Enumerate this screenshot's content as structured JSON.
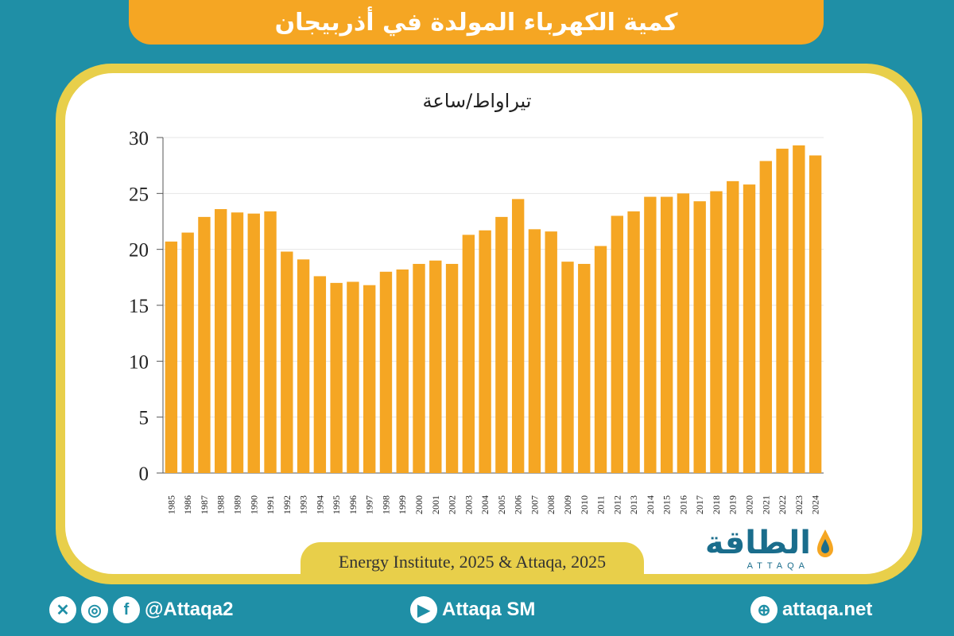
{
  "title": "كمية الكهرباء المولدة في أذربيجان",
  "chart_data": {
    "type": "bar",
    "ylabel": "تيراواط/ساعة",
    "ylim": [
      0,
      30
    ],
    "yticks": [
      0,
      5,
      10,
      15,
      20,
      25,
      30
    ],
    "grid": true,
    "categories": [
      "1985",
      "1986",
      "1987",
      "1988",
      "1989",
      "1990",
      "1991",
      "1992",
      "1993",
      "1994",
      "1995",
      "1996",
      "1997",
      "1998",
      "1999",
      "2000",
      "2001",
      "2002",
      "2003",
      "2004",
      "2005",
      "2006",
      "2007",
      "2008",
      "2009",
      "2010",
      "2011",
      "2012",
      "2013",
      "2014",
      "2015",
      "2016",
      "2017",
      "2018",
      "2019",
      "2020",
      "2021",
      "2022",
      "2023",
      "2024"
    ],
    "values": [
      20.7,
      21.5,
      22.9,
      23.6,
      23.3,
      23.2,
      23.4,
      19.8,
      19.1,
      17.6,
      17.0,
      17.1,
      16.8,
      18.0,
      18.2,
      18.7,
      19.0,
      18.7,
      21.3,
      21.7,
      22.9,
      24.5,
      21.8,
      21.6,
      18.9,
      18.7,
      20.3,
      23.0,
      23.4,
      24.7,
      24.7,
      25.0,
      24.3,
      25.2,
      26.1,
      25.8,
      27.9,
      29.0,
      29.3,
      28.4
    ],
    "bar_color": "#f5a623"
  },
  "source": "Energy Institute, 2025 & Attaqa, 2025",
  "logo": {
    "word": "الطاقة",
    "sub": "ATTAQA"
  },
  "footer": {
    "handle": "@Attaqa2",
    "youtube": "Attaqa SM",
    "website": "attaqa.net"
  },
  "colors": {
    "background": "#1f8fa6",
    "accent": "#f5a623",
    "frame": "#e8cf4a",
    "logo": "#1a6d8c"
  }
}
